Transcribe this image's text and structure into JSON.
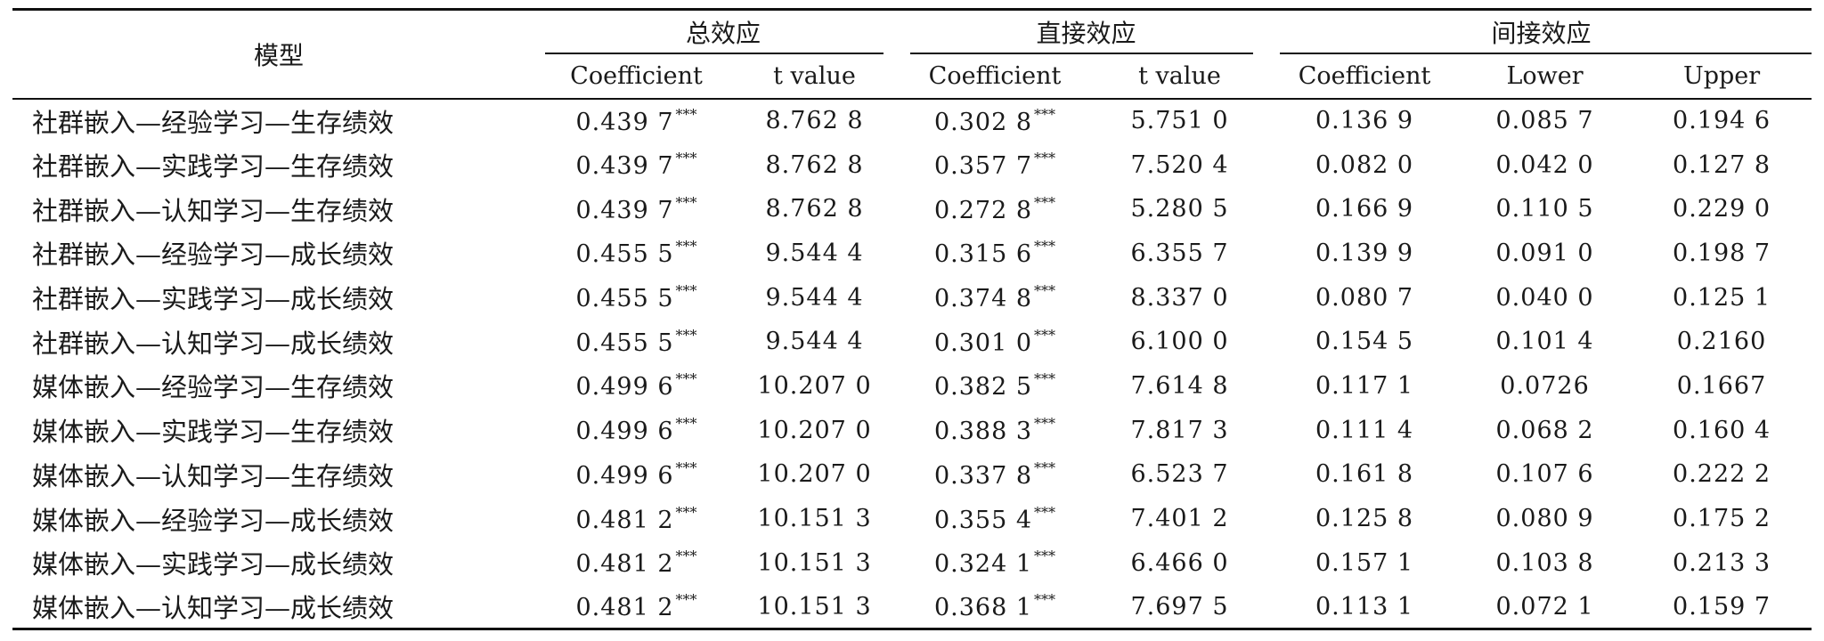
{
  "table": {
    "model_header": "模型",
    "groups": [
      {
        "label": "总效应",
        "subs": [
          "Coefficient",
          "t value"
        ]
      },
      {
        "label": "直接效应",
        "subs": [
          "Coefficient",
          "t value"
        ]
      },
      {
        "label": "间接效应",
        "subs": [
          "Coefficient",
          "Lower",
          "Upper"
        ]
      }
    ],
    "rows": [
      {
        "model": "社群嵌入—经验学习—生存绩效",
        "total_coef": "0.439 7",
        "total_sig": "***",
        "total_t": "8.762 8",
        "direct_coef": "0.302 8",
        "direct_sig": "***",
        "direct_t": "5.751 0",
        "ind_coef": "0.136 9",
        "lower": "0.085 7",
        "upper": "0.194 6"
      },
      {
        "model": "社群嵌入—实践学习—生存绩效",
        "total_coef": "0.439 7",
        "total_sig": "***",
        "total_t": "8.762 8",
        "direct_coef": "0.357 7",
        "direct_sig": "***",
        "direct_t": "7.520 4",
        "ind_coef": "0.082 0",
        "lower": "0.042 0",
        "upper": "0.127 8"
      },
      {
        "model": "社群嵌入—认知学习—生存绩效",
        "total_coef": "0.439 7",
        "total_sig": "***",
        "total_t": "8.762 8",
        "direct_coef": "0.272 8",
        "direct_sig": "***",
        "direct_t": "5.280 5",
        "ind_coef": "0.166 9",
        "lower": "0.110 5",
        "upper": "0.229 0"
      },
      {
        "model": "社群嵌入—经验学习—成长绩效",
        "total_coef": "0.455 5",
        "total_sig": "***",
        "total_t": "9.544 4",
        "direct_coef": "0.315 6",
        "direct_sig": "***",
        "direct_t": "6.355 7",
        "ind_coef": "0.139 9",
        "lower": "0.091 0",
        "upper": "0.198 7"
      },
      {
        "model": "社群嵌入—实践学习—成长绩效",
        "total_coef": "0.455 5",
        "total_sig": "***",
        "total_t": "9.544 4",
        "direct_coef": "0.374 8",
        "direct_sig": "***",
        "direct_t": "8.337 0",
        "ind_coef": "0.080 7",
        "lower": "0.040 0",
        "upper": "0.125 1"
      },
      {
        "model": "社群嵌入—认知学习—成长绩效",
        "total_coef": "0.455 5",
        "total_sig": "***",
        "total_t": "9.544 4",
        "direct_coef": "0.301 0",
        "direct_sig": "***",
        "direct_t": "6.100 0",
        "ind_coef": "0.154 5",
        "lower": "0.101 4",
        "upper": "0.2160"
      },
      {
        "model": "媒体嵌入—经验学习—生存绩效",
        "total_coef": "0.499 6",
        "total_sig": "***",
        "total_t": "10.207 0",
        "direct_coef": "0.382 5",
        "direct_sig": "***",
        "direct_t": "7.614 8",
        "ind_coef": "0.117 1",
        "lower": "0.0726",
        "upper": "0.1667"
      },
      {
        "model": "媒体嵌入—实践学习—生存绩效",
        "total_coef": "0.499 6",
        "total_sig": "***",
        "total_t": "10.207 0",
        "direct_coef": "0.388 3",
        "direct_sig": "***",
        "direct_t": "7.817 3",
        "ind_coef": "0.111 4",
        "lower": "0.068 2",
        "upper": "0.160 4"
      },
      {
        "model": "媒体嵌入—认知学习—生存绩效",
        "total_coef": "0.499 6",
        "total_sig": "***",
        "total_t": "10.207 0",
        "direct_coef": "0.337 8",
        "direct_sig": "***",
        "direct_t": "6.523 7",
        "ind_coef": "0.161 8",
        "lower": "0.107 6",
        "upper": "0.222 2"
      },
      {
        "model": "媒体嵌入—经验学习—成长绩效",
        "total_coef": "0.481 2",
        "total_sig": "***",
        "total_t": "10.151 3",
        "direct_coef": "0.355 4",
        "direct_sig": "***",
        "direct_t": "7.401 2",
        "ind_coef": "0.125 8",
        "lower": "0.080 9",
        "upper": "0.175 2"
      },
      {
        "model": "媒体嵌入—实践学习—成长绩效",
        "total_coef": "0.481 2",
        "total_sig": "***",
        "total_t": "10.151 3",
        "direct_coef": "0.324 1",
        "direct_sig": "***",
        "direct_t": "6.466 0",
        "ind_coef": "0.157 1",
        "lower": "0.103 8",
        "upper": "0.213 3"
      },
      {
        "model": "媒体嵌入—认知学习—成长绩效",
        "total_coef": "0.481 2",
        "total_sig": "***",
        "total_t": "10.151 3",
        "direct_coef": "0.368 1",
        "direct_sig": "***",
        "direct_t": "7.697 5",
        "ind_coef": "0.113 1",
        "lower": "0.072 1",
        "upper": "0.159 7"
      }
    ]
  }
}
